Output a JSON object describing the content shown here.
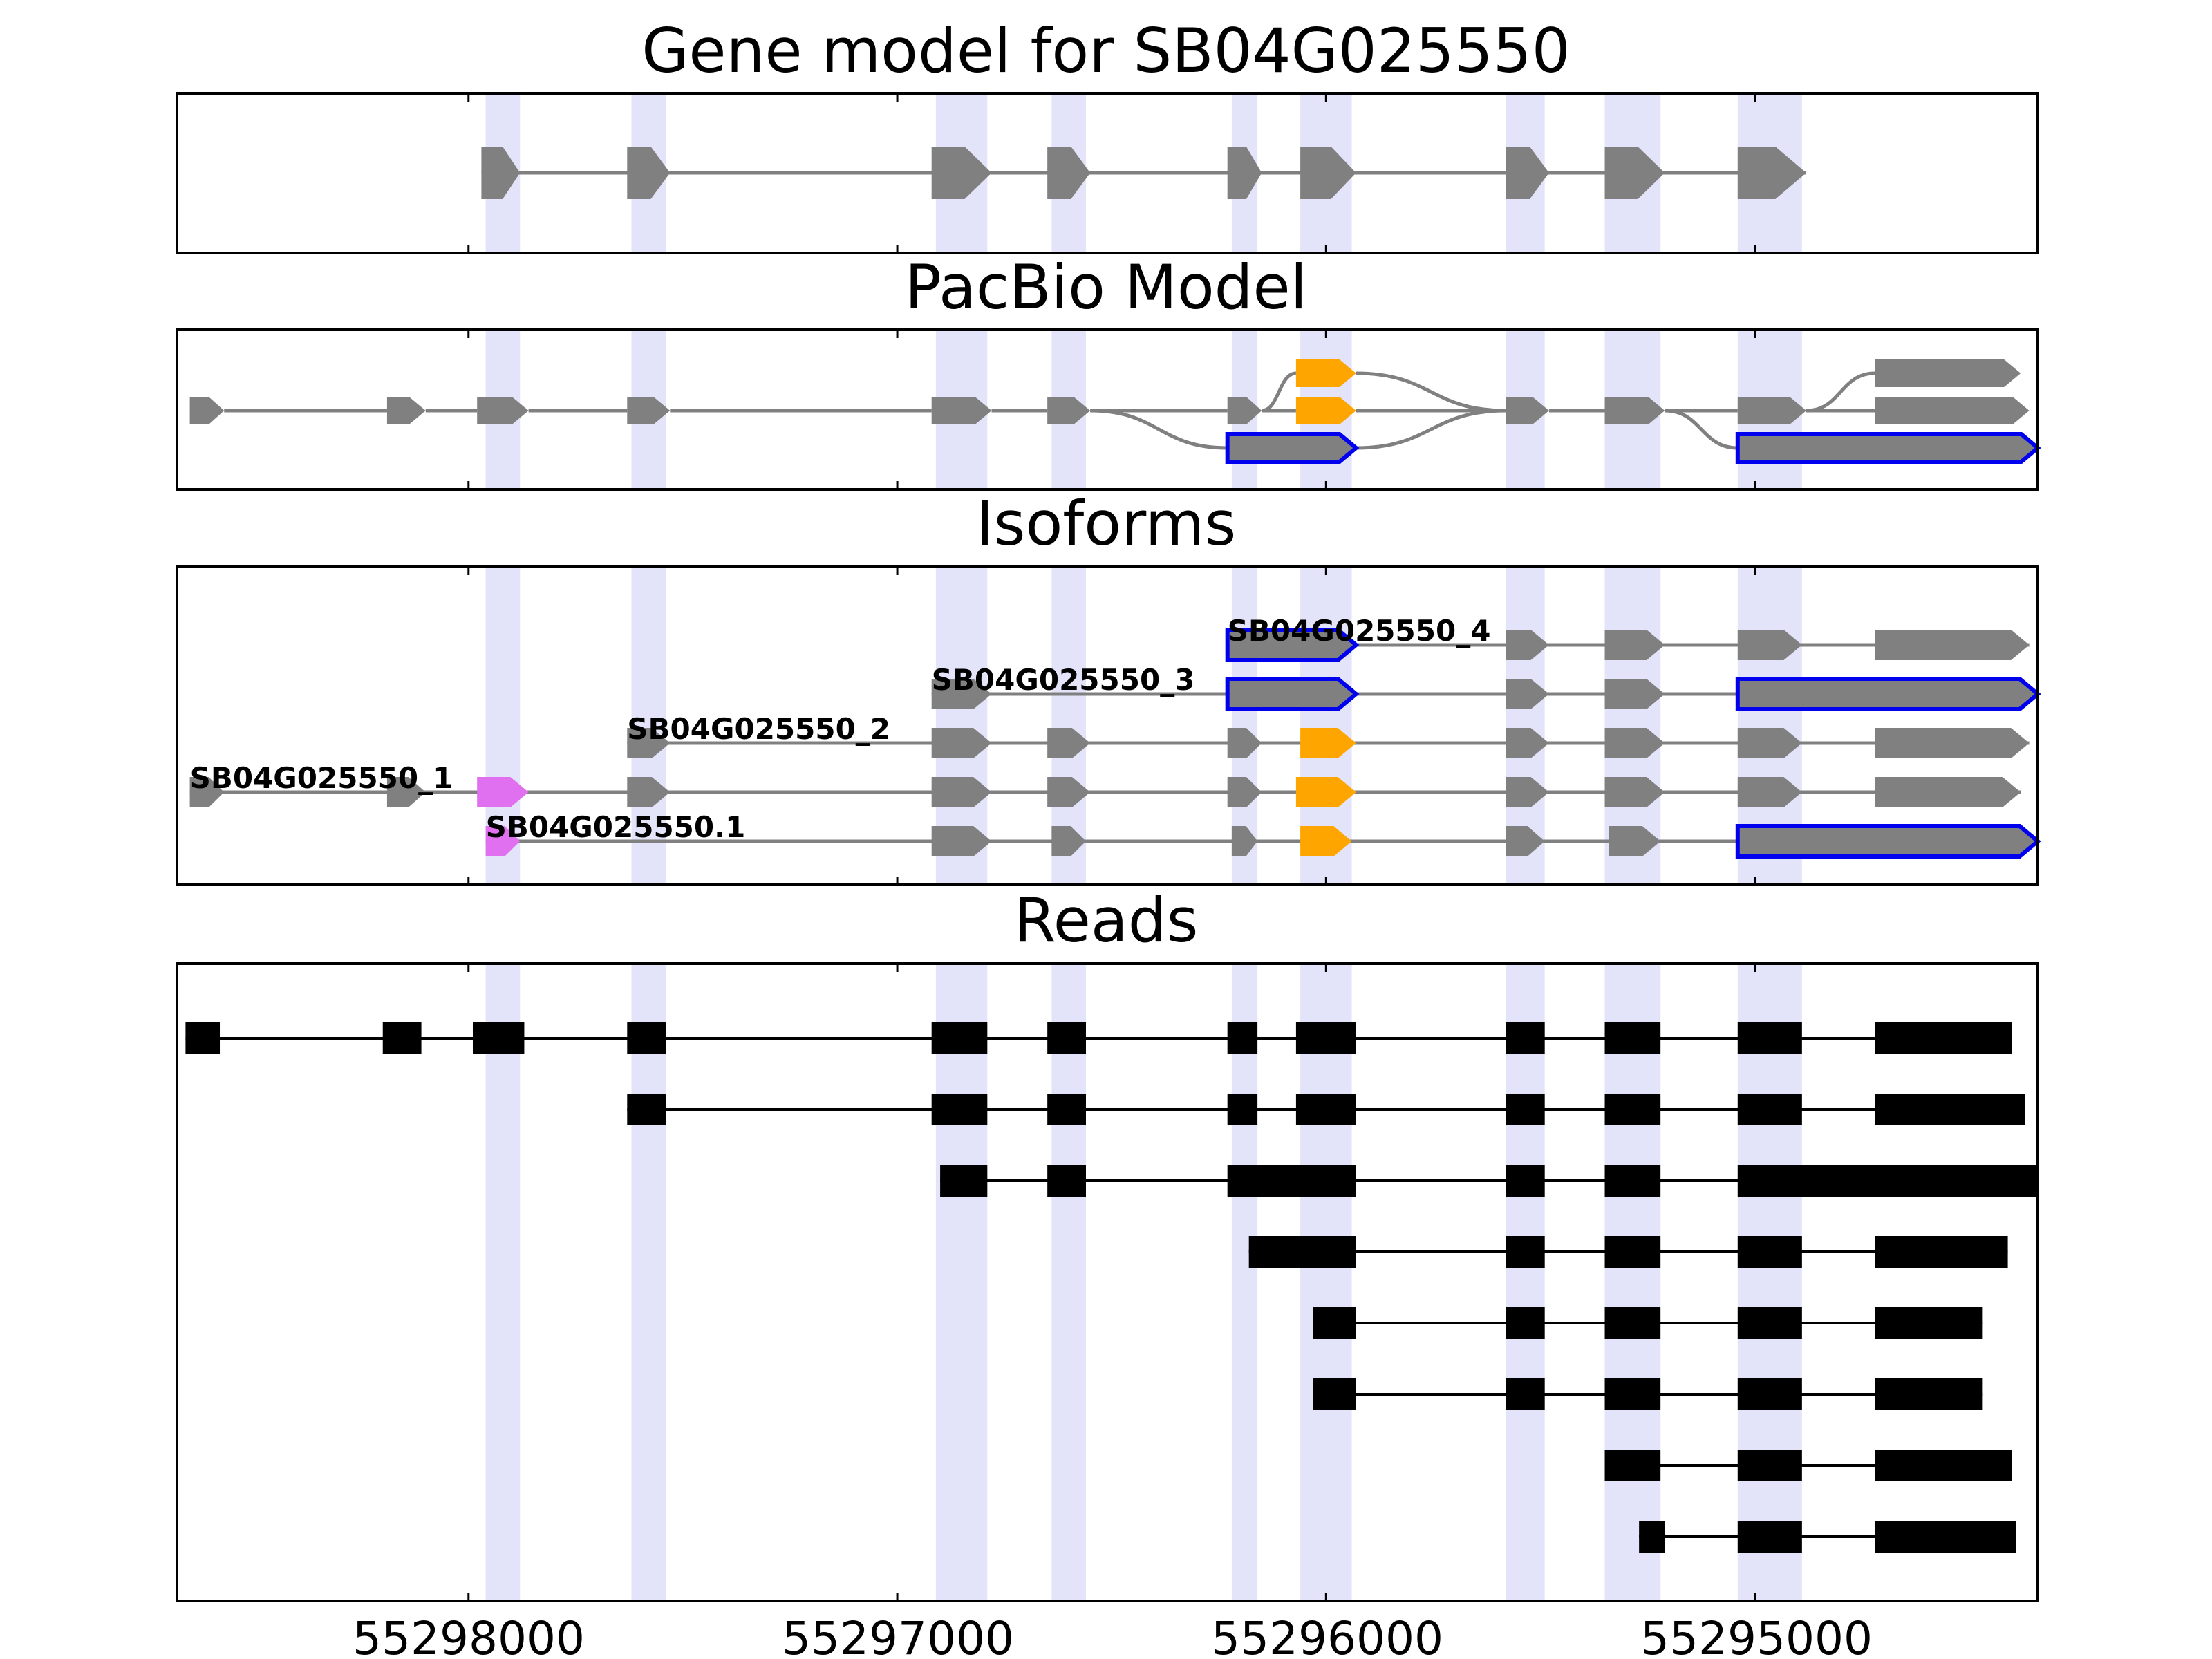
{
  "figure": {
    "x_ticks": [
      55298000,
      55297000,
      55296000,
      55295000
    ],
    "x_tick_labels": [
      "55298000",
      "55297000",
      "55296000",
      "55295000"
    ]
  },
  "colors": {
    "exon": "#808080",
    "intron": "#808080",
    "alt_exon": "#FFA500",
    "start_exon": "#E070F0",
    "highlight_outline": "#0000EE",
    "band": "#CCCCF5",
    "read": "#000000"
  },
  "coordinate_range": {
    "left": 55298680,
    "right": 55294340,
    "unit": "bp",
    "direction": "reverse"
  },
  "shaded_regions": [
    [
      55297960,
      55297880
    ],
    [
      55297620,
      55297540
    ],
    [
      55296910,
      55296790
    ],
    [
      55296640,
      55296560
    ],
    [
      55296220,
      55296160
    ],
    [
      55296060,
      55295940
    ],
    [
      55295580,
      55295490
    ],
    [
      55295350,
      55295220
    ],
    [
      55295040,
      55294890
    ]
  ],
  "panels": {
    "gene_model": {
      "title": "Gene model for SB04G025550",
      "exons": [
        {
          "start": 55297970,
          "end": 55297880,
          "color": "#808080"
        },
        {
          "start": 55297630,
          "end": 55297530,
          "color": "#808080"
        },
        {
          "start": 55296920,
          "end": 55296780,
          "color": "#808080"
        },
        {
          "start": 55296650,
          "end": 55296550,
          "color": "#808080"
        },
        {
          "start": 55296230,
          "end": 55296150,
          "color": "#808080"
        },
        {
          "start": 55296060,
          "end": 55295930,
          "color": "#808080"
        },
        {
          "start": 55295580,
          "end": 55295480,
          "color": "#808080"
        },
        {
          "start": 55295350,
          "end": 55295210,
          "color": "#808080"
        },
        {
          "start": 55295040,
          "end": 55294880,
          "color": "#808080"
        }
      ]
    },
    "pacbio": {
      "title": "PacBio Model",
      "nodes": [
        {
          "start": 55298650,
          "end": 55298570,
          "row": 1,
          "color": "#808080",
          "outline": false
        },
        {
          "start": 55298190,
          "end": 55298100,
          "row": 1,
          "color": "#808080",
          "outline": false
        },
        {
          "start": 55297980,
          "end": 55297860,
          "row": 1,
          "color": "#808080",
          "outline": false
        },
        {
          "start": 55297630,
          "end": 55297530,
          "row": 1,
          "color": "#808080",
          "outline": false
        },
        {
          "start": 55296920,
          "end": 55296780,
          "row": 1,
          "color": "#808080",
          "outline": false
        },
        {
          "start": 55296650,
          "end": 55296550,
          "row": 1,
          "color": "#808080",
          "outline": false
        },
        {
          "start": 55296230,
          "end": 55296150,
          "row": 1,
          "color": "#808080",
          "outline": false
        },
        {
          "start": 55296070,
          "end": 55295930,
          "row": 0,
          "color": "#FFA500",
          "outline": false
        },
        {
          "start": 55296070,
          "end": 55295930,
          "row": 1,
          "color": "#FFA500",
          "outline": false
        },
        {
          "start": 55296230,
          "end": 55295930,
          "row": 2,
          "color": "#808080",
          "outline": true
        },
        {
          "start": 55295580,
          "end": 55295480,
          "row": 1,
          "color": "#808080",
          "outline": false
        },
        {
          "start": 55295350,
          "end": 55295210,
          "row": 1,
          "color": "#808080",
          "outline": false
        },
        {
          "start": 55295040,
          "end": 55294880,
          "row": 1,
          "color": "#808080",
          "outline": false
        },
        {
          "start": 55294720,
          "end": 55294380,
          "row": 0,
          "color": "#808080",
          "outline": false
        },
        {
          "start": 55294720,
          "end": 55294360,
          "row": 1,
          "color": "#808080",
          "outline": false
        },
        {
          "start": 55295040,
          "end": 55294340,
          "row": 2,
          "color": "#808080",
          "outline": true
        }
      ],
      "edges": [
        [
          0,
          1
        ],
        [
          1,
          2
        ],
        [
          2,
          3
        ],
        [
          3,
          4
        ],
        [
          4,
          5
        ],
        [
          5,
          6
        ],
        [
          5,
          9
        ],
        [
          6,
          7
        ],
        [
          6,
          8
        ],
        [
          7,
          10
        ],
        [
          8,
          10
        ],
        [
          9,
          10
        ],
        [
          10,
          11
        ],
        [
          11,
          12
        ],
        [
          11,
          15
        ],
        [
          12,
          13
        ],
        [
          12,
          14
        ]
      ]
    },
    "isoforms": {
      "title": "Isoforms",
      "tracks": [
        {
          "label": "SB04G025550_4",
          "label_at": 55296230,
          "exons": [
            {
              "start": 55296230,
              "end": 55295930,
              "color": "#808080",
              "outline": true
            },
            {
              "start": 55295580,
              "end": 55295480,
              "color": "#808080",
              "outline": false
            },
            {
              "start": 55295350,
              "end": 55295210,
              "color": "#808080",
              "outline": false
            },
            {
              "start": 55295040,
              "end": 55294890,
              "color": "#808080",
              "outline": false
            },
            {
              "start": 55294720,
              "end": 55294360,
              "color": "#808080",
              "outline": false
            }
          ]
        },
        {
          "label": "SB04G025550_3",
          "label_at": 55296920,
          "exons": [
            {
              "start": 55296920,
              "end": 55296780,
              "color": "#808080",
              "outline": false
            },
            {
              "start": 55296230,
              "end": 55295930,
              "color": "#808080",
              "outline": true
            },
            {
              "start": 55295580,
              "end": 55295480,
              "color": "#808080",
              "outline": false
            },
            {
              "start": 55295350,
              "end": 55295210,
              "color": "#808080",
              "outline": false
            },
            {
              "start": 55295040,
              "end": 55294340,
              "color": "#808080",
              "outline": true
            }
          ]
        },
        {
          "label": "SB04G025550_2",
          "label_at": 55297630,
          "exons": [
            {
              "start": 55297630,
              "end": 55297530,
              "color": "#808080",
              "outline": false
            },
            {
              "start": 55296920,
              "end": 55296780,
              "color": "#808080",
              "outline": false
            },
            {
              "start": 55296650,
              "end": 55296550,
              "color": "#808080",
              "outline": false
            },
            {
              "start": 55296230,
              "end": 55296150,
              "color": "#808080",
              "outline": false
            },
            {
              "start": 55296060,
              "end": 55295930,
              "color": "#FFA500",
              "outline": false
            },
            {
              "start": 55295580,
              "end": 55295480,
              "color": "#808080",
              "outline": false
            },
            {
              "start": 55295350,
              "end": 55295210,
              "color": "#808080",
              "outline": false
            },
            {
              "start": 55295040,
              "end": 55294890,
              "color": "#808080",
              "outline": false
            },
            {
              "start": 55294720,
              "end": 55294360,
              "color": "#808080",
              "outline": false
            }
          ]
        },
        {
          "label": "SB04G025550_1",
          "label_at": 55298650,
          "exons": [
            {
              "start": 55298650,
              "end": 55298570,
              "color": "#808080",
              "outline": false
            },
            {
              "start": 55298190,
              "end": 55298100,
              "color": "#808080",
              "outline": false
            },
            {
              "start": 55297980,
              "end": 55297860,
              "color": "#E070F0",
              "outline": false
            },
            {
              "start": 55297630,
              "end": 55297530,
              "color": "#808080",
              "outline": false
            },
            {
              "start": 55296920,
              "end": 55296780,
              "color": "#808080",
              "outline": false
            },
            {
              "start": 55296650,
              "end": 55296550,
              "color": "#808080",
              "outline": false
            },
            {
              "start": 55296230,
              "end": 55296150,
              "color": "#808080",
              "outline": false
            },
            {
              "start": 55296070,
              "end": 55295930,
              "color": "#FFA500",
              "outline": false
            },
            {
              "start": 55295580,
              "end": 55295480,
              "color": "#808080",
              "outline": false
            },
            {
              "start": 55295350,
              "end": 55295210,
              "color": "#808080",
              "outline": false
            },
            {
              "start": 55295040,
              "end": 55294890,
              "color": "#808080",
              "outline": false
            },
            {
              "start": 55294720,
              "end": 55294380,
              "color": "#808080",
              "outline": false
            }
          ]
        },
        {
          "label": "SB04G025550.1",
          "label_at": 55297960,
          "exons": [
            {
              "start": 55297960,
              "end": 55297880,
              "color": "#E070F0",
              "outline": false
            },
            {
              "start": 55296920,
              "end": 55296780,
              "color": "#808080",
              "outline": false
            },
            {
              "start": 55296640,
              "end": 55296560,
              "color": "#808080",
              "outline": false
            },
            {
              "start": 55296220,
              "end": 55296160,
              "color": "#808080",
              "outline": false
            },
            {
              "start": 55296060,
              "end": 55295940,
              "color": "#FFA500",
              "outline": false
            },
            {
              "start": 55295580,
              "end": 55295490,
              "color": "#808080",
              "outline": false
            },
            {
              "start": 55295340,
              "end": 55295220,
              "color": "#808080",
              "outline": false
            },
            {
              "start": 55295040,
              "end": 55294340,
              "color": "#808080",
              "outline": true
            }
          ]
        }
      ]
    },
    "reads": {
      "title": "Reads",
      "reads": [
        [
          [
            55298660,
            55298580
          ],
          [
            55298200,
            55298110
          ],
          [
            55297990,
            55297870
          ],
          [
            55297630,
            55297540
          ],
          [
            55296920,
            55296790
          ],
          [
            55296650,
            55296560
          ],
          [
            55296230,
            55296160
          ],
          [
            55296070,
            55295930
          ],
          [
            55295580,
            55295490
          ],
          [
            55295350,
            55295220
          ],
          [
            55295040,
            55294890
          ],
          [
            55294720,
            55294400
          ]
        ],
        [
          [
            55297630,
            55297540
          ],
          [
            55296920,
            55296790
          ],
          [
            55296650,
            55296560
          ],
          [
            55296230,
            55296160
          ],
          [
            55296070,
            55295930
          ],
          [
            55295580,
            55295490
          ],
          [
            55295350,
            55295220
          ],
          [
            55295040,
            55294890
          ],
          [
            55294720,
            55294370
          ]
        ],
        [
          [
            55296900,
            55296790
          ],
          [
            55296650,
            55296560
          ],
          [
            55296230,
            55295930
          ],
          [
            55295580,
            55295490
          ],
          [
            55295350,
            55295220
          ],
          [
            55295040,
            55294340
          ]
        ],
        [
          [
            55296180,
            55295930
          ],
          [
            55295580,
            55295490
          ],
          [
            55295350,
            55295220
          ],
          [
            55295040,
            55294890
          ],
          [
            55294720,
            55294410
          ]
        ],
        [
          [
            55296030,
            55295930
          ],
          [
            55295580,
            55295490
          ],
          [
            55295350,
            55295220
          ],
          [
            55295040,
            55294890
          ],
          [
            55294720,
            55294470
          ]
        ],
        [
          [
            55296030,
            55295930
          ],
          [
            55295580,
            55295490
          ],
          [
            55295350,
            55295220
          ],
          [
            55295040,
            55294890
          ],
          [
            55294720,
            55294470
          ]
        ],
        [
          [
            55295350,
            55295220
          ],
          [
            55295040,
            55294890
          ],
          [
            55294720,
            55294400
          ]
        ],
        [
          [
            55295270,
            55295210
          ],
          [
            55295040,
            55294890
          ],
          [
            55294720,
            55294390
          ]
        ]
      ]
    }
  }
}
